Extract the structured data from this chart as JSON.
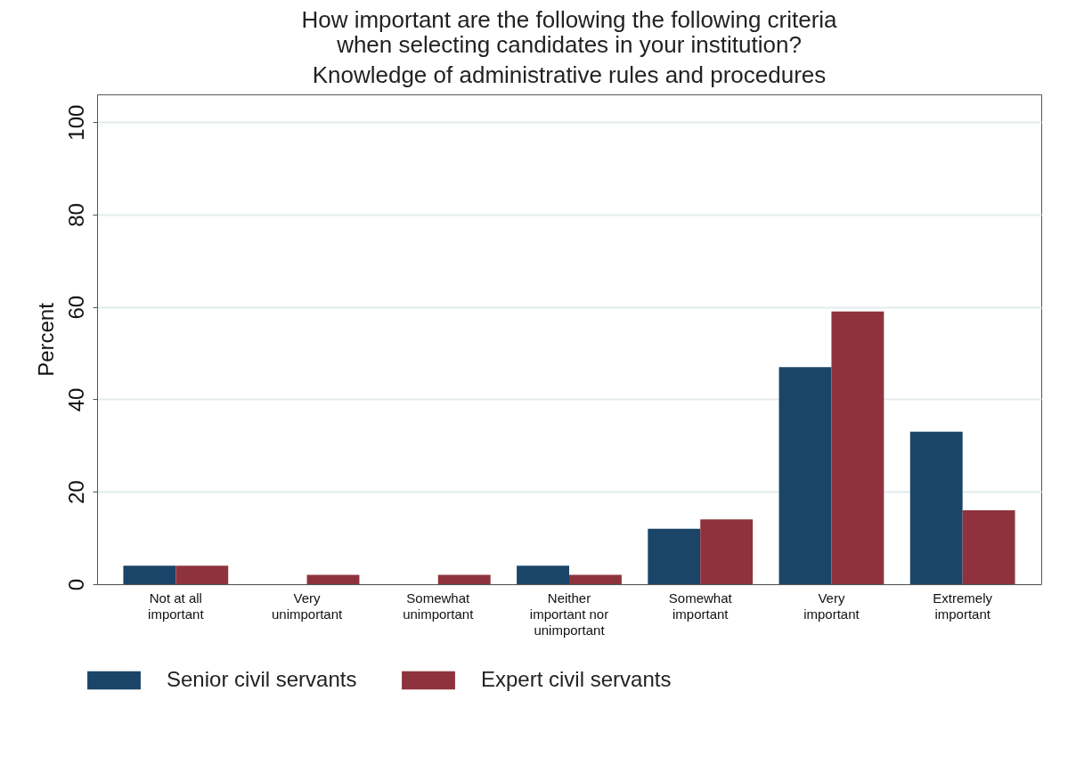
{
  "chart_data": {
    "type": "bar",
    "title": "How important are the following the following criteria when selecting candidates in your institution?",
    "subtitle": "Knowledge of administrative rules and procedures",
    "ylabel": "Percent",
    "categories": [
      "Not at all important",
      "Very unimportant",
      "Somewhat unimportant",
      "Neither important nor unimportant",
      "Somewhat important",
      "Very important",
      "Extremely important"
    ],
    "series": [
      {
        "name": "Senior civil servants",
        "color": "#1a4568",
        "values": [
          4,
          0,
          0,
          4,
          12,
          47,
          33
        ]
      },
      {
        "name": "Expert civil servants",
        "color": "#8e333d",
        "values": [
          4,
          2,
          2,
          2,
          14,
          59,
          16
        ]
      }
    ],
    "ylim": [
      0,
      106
    ],
    "yticks": [
      0,
      20,
      40,
      60,
      80,
      100
    ],
    "grid": "y",
    "legend": "bottom"
  }
}
